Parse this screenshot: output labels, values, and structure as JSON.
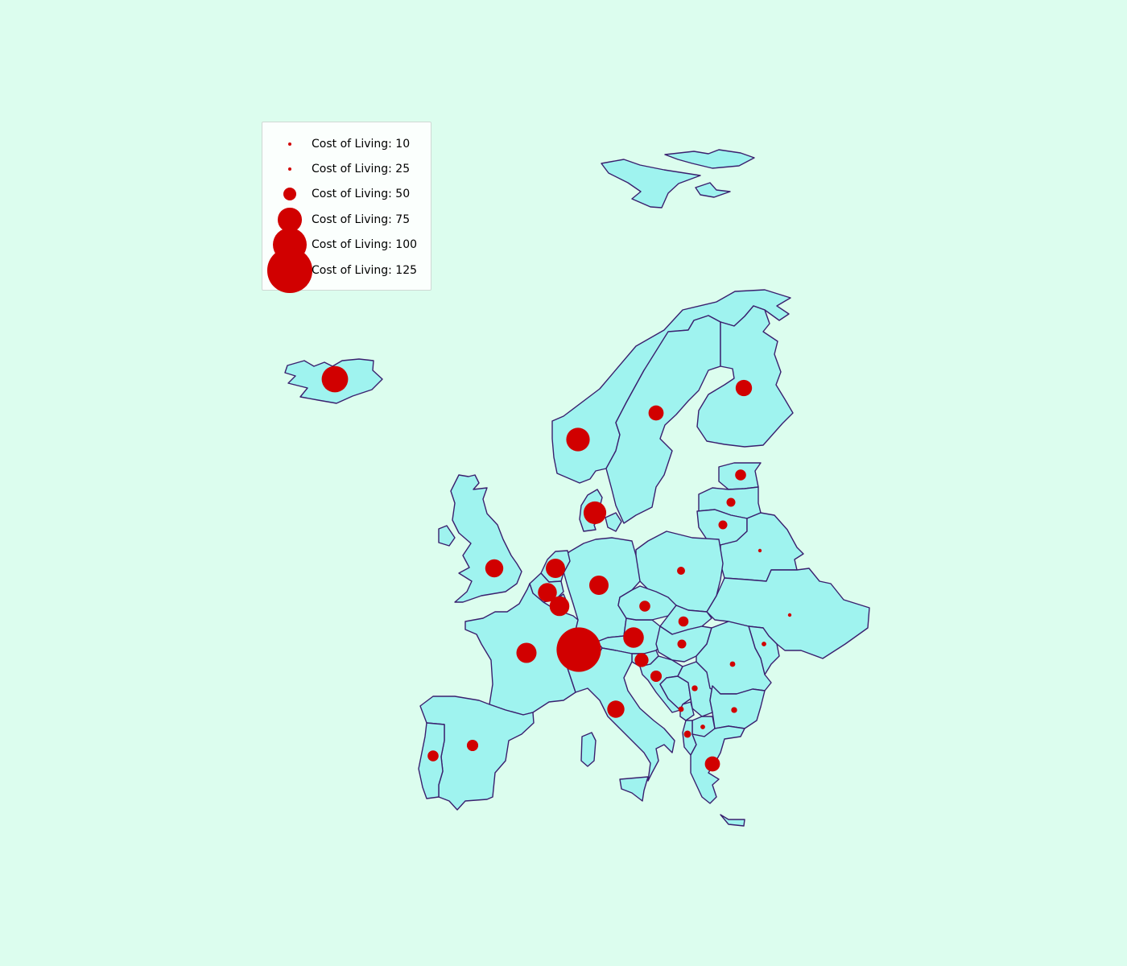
{
  "map": {
    "title": "",
    "marker_color": "#d10000",
    "land_color": "#9ff3ef",
    "border_color": "#3a1f6e",
    "background_color": "#dcfdee"
  },
  "legend": {
    "placement": "upper-left",
    "entries": [
      {
        "label": "Cost of Living: 10",
        "value": 10
      },
      {
        "label": "Cost of Living: 25",
        "value": 25
      },
      {
        "label": "Cost of Living: 50",
        "value": 50
      },
      {
        "label": "Cost of Living: 75",
        "value": 75
      },
      {
        "label": "Cost of Living: 100",
        "value": 100
      },
      {
        "label": "Cost of Living: 125",
        "value": 125
      }
    ]
  },
  "chart_data": {
    "type": "scatter",
    "title": "",
    "size_variable": "Cost of Living",
    "points": [
      {
        "country": "Iceland",
        "lon": -21.9,
        "lat": 64.1,
        "value": 82
      },
      {
        "country": "Norway",
        "lon": 10.8,
        "lat": 59.9,
        "value": 75
      },
      {
        "country": "Sweden",
        "lon": 18.1,
        "lat": 59.3,
        "value": 55
      },
      {
        "country": "Finland",
        "lon": 24.9,
        "lat": 60.2,
        "value": 58
      },
      {
        "country": "Estonia",
        "lon": 24.7,
        "lat": 59.4,
        "value": 45
      },
      {
        "country": "Latvia",
        "lon": 24.1,
        "lat": 56.9,
        "value": 40
      },
      {
        "country": "Lithuania",
        "lon": 25.3,
        "lat": 54.7,
        "value": 40
      },
      {
        "country": "Belarus",
        "lon": 27.6,
        "lat": 53.9,
        "value": 12
      },
      {
        "country": "Ukraine",
        "lon": 30.5,
        "lat": 50.5,
        "value": 12
      },
      {
        "country": "Denmark",
        "lon": 12.6,
        "lat": 55.7,
        "value": 73
      },
      {
        "country": "United Kingdom",
        "lon": -0.1,
        "lat": 51.5,
        "value": 62
      },
      {
        "country": "Netherlands",
        "lon": 4.9,
        "lat": 52.4,
        "value": 65
      },
      {
        "country": "Belgium",
        "lon": 4.4,
        "lat": 50.8,
        "value": 64
      },
      {
        "country": "Luxembourg",
        "lon": 6.1,
        "lat": 49.6,
        "value": 66
      },
      {
        "country": "Germany",
        "lon": 13.4,
        "lat": 52.5,
        "value": 65
      },
      {
        "country": "Poland",
        "lon": 21.0,
        "lat": 52.2,
        "value": 38
      },
      {
        "country": "Czechia",
        "lon": 14.4,
        "lat": 50.1,
        "value": 45
      },
      {
        "country": "Slovakia",
        "lon": 17.1,
        "lat": 48.1,
        "value": 43
      },
      {
        "country": "Hungary",
        "lon": 19.0,
        "lat": 47.5,
        "value": 40
      },
      {
        "country": "Austria",
        "lon": 16.4,
        "lat": 48.2,
        "value": 68
      },
      {
        "country": "Switzerland",
        "lon": 7.4,
        "lat": 46.9,
        "value": 125
      },
      {
        "country": "France",
        "lon": 2.3,
        "lat": 48.9,
        "value": 67
      },
      {
        "country": "Spain",
        "lon": -3.7,
        "lat": 40.4,
        "value": 46
      },
      {
        "country": "Portugal",
        "lon": -9.1,
        "lat": 38.7,
        "value": 45
      },
      {
        "country": "Italy",
        "lon": 12.5,
        "lat": 41.9,
        "value": 60
      },
      {
        "country": "Slovenia",
        "lon": 14.5,
        "lat": 46.1,
        "value": 52
      },
      {
        "country": "Croatia",
        "lon": 16.0,
        "lat": 45.8,
        "value": 46
      },
      {
        "country": "Serbia",
        "lon": 20.5,
        "lat": 44.8,
        "value": 33
      },
      {
        "country": "Bosnia and Herzegovina",
        "lon": 18.4,
        "lat": 43.9,
        "value": 32
      },
      {
        "country": "Montenegro",
        "lon": 19.3,
        "lat": 42.4,
        "value": 36
      },
      {
        "country": "North Macedonia",
        "lon": 21.4,
        "lat": 42.0,
        "value": 30
      },
      {
        "country": "Romania",
        "lon": 26.1,
        "lat": 44.4,
        "value": 32
      },
      {
        "country": "Moldova",
        "lon": 28.9,
        "lat": 47.0,
        "value": 30
      },
      {
        "country": "Bulgaria",
        "lon": 23.3,
        "lat": 42.7,
        "value": 33
      },
      {
        "country": "Greece",
        "lon": 23.7,
        "lat": 38.0,
        "value": 55
      }
    ]
  }
}
